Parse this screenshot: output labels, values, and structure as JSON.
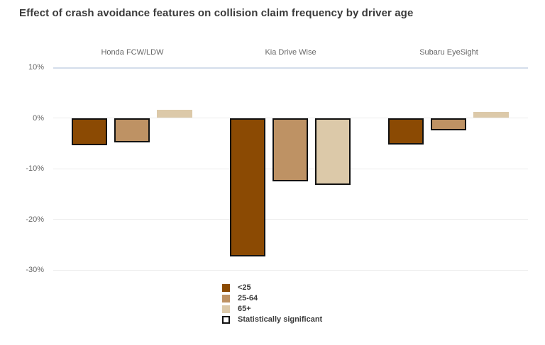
{
  "title": "Effect of crash avoidance features on collision claim frequency by driver age",
  "chart_data": {
    "type": "bar",
    "title": "Effect of crash avoidance features on collision claim frequency by driver age",
    "panels": [
      "Honda FCW/LDW",
      "Kia Drive Wise",
      "Subaru EyeSight"
    ],
    "categories": [
      "<25",
      "25-64",
      "65+"
    ],
    "series": [
      {
        "name": "<25",
        "color": "#8B4A03",
        "values": [
          -5.4,
          -27.4,
          -5.2
        ],
        "significant": [
          true,
          true,
          true
        ]
      },
      {
        "name": "25-64",
        "color": "#BE9264",
        "values": [
          -4.8,
          -12.5,
          -2.4
        ],
        "significant": [
          true,
          true,
          true
        ]
      },
      {
        "name": "65+",
        "color": "#DCC9A9",
        "values": [
          1.6,
          -13.2,
          1.2
        ],
        "significant": [
          false,
          true,
          false
        ]
      }
    ],
    "y_ticks": [
      {
        "value": 10,
        "label": "10%"
      },
      {
        "value": 0,
        "label": "0%"
      },
      {
        "value": -10,
        "label": "-10%"
      },
      {
        "value": -20,
        "label": "-20%"
      },
      {
        "value": -30,
        "label": "-30%"
      }
    ],
    "ylim": [
      -30,
      10
    ],
    "grid": true,
    "unit": "%",
    "legend": {
      "position": "bottom",
      "items": [
        {
          "label": "<25",
          "color": "#8B4A03",
          "outlined": false
        },
        {
          "label": "25-64",
          "color": "#BE9264",
          "outlined": false
        },
        {
          "label": "65+",
          "color": "#DCC9A9",
          "outlined": false
        },
        {
          "label": "Statistically significant",
          "color": "#FFFFFF",
          "outlined": true
        }
      ]
    },
    "colors": {
      "significant_outline": "#111111",
      "gridline": "#ECECEC",
      "plot_top_border": "#D4DDEB",
      "axis_text": "#666666",
      "title_text": "#3A3A3A",
      "legend_text": "#3B3B3B",
      "background": "#FFFFFF"
    }
  }
}
